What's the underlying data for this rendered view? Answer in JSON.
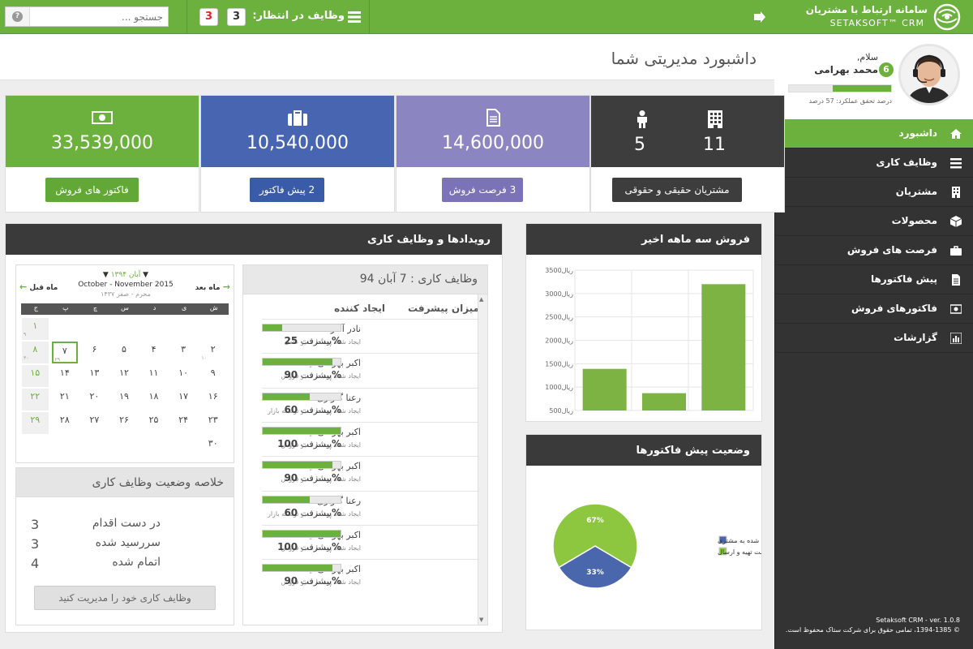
{
  "brand": {
    "title": "سامانه ارتباط با مشتریان",
    "subtitle": "SETAKSOFT™ CRM"
  },
  "topbar": {
    "tasks_label": "وظایف در انتظار:",
    "pending_count": "3",
    "overdue_count": "3",
    "search_placeholder": "جستجو ...",
    "help_glyph": "?"
  },
  "profile": {
    "greeting": "سلام,",
    "name": "محمد بهرامی",
    "badge": "6",
    "performance_pct": 57,
    "performance_label": "درصد تحقق عملکرد: 57 درصد"
  },
  "nav": [
    {
      "label": "داشبورد",
      "icon": "home-icon",
      "active": true
    },
    {
      "label": "وظایف کاری",
      "icon": "list-icon"
    },
    {
      "label": "مشتریان",
      "icon": "building-icon"
    },
    {
      "label": "محصولات",
      "icon": "box-icon"
    },
    {
      "label": "فرصت های فروش",
      "icon": "briefcase-icon"
    },
    {
      "label": "پیش فاکتورها",
      "icon": "document-icon"
    },
    {
      "label": "فاکتورهای فروش",
      "icon": "money-icon"
    },
    {
      "label": "گزارشات",
      "icon": "bar-chart-icon"
    }
  ],
  "footer": {
    "version": "Setaksoft CRM - ver. 1.0.8",
    "copyright": "© 1394-1385، تمامی حقوق برای شرکت ستاک محفوظ است."
  },
  "page_title": "داشبورد مدیریتی شما",
  "stats": {
    "customers": {
      "individual": "5",
      "legal": "11",
      "button": "مشتریان حقیقی و حقوقی",
      "color": "#3d3d3d"
    },
    "opportunities": {
      "value": "14,600,000",
      "button": "3 فرصت فروش",
      "color": "#8b85c1",
      "btn_color": "#7a73b8"
    },
    "quotes": {
      "value": "10,540,000",
      "button": "2 پیش فاکتور",
      "color": "#4765b0",
      "btn_color": "#3a5ba8"
    },
    "invoices": {
      "value": "33,539,000",
      "button": "فاکتور های فروش",
      "color": "#6cb13d",
      "btn_color": "#62a837"
    }
  },
  "events": {
    "title": "رویدادها و وظایف کاری",
    "calendar": {
      "prev": "ماه قبل",
      "next": "ماه بعد",
      "month_fa": "آبان ۱۳۹۴",
      "month_en": "October - November 2015",
      "month_hijri": "محرم - صفر ۱۴۳۷",
      "weekdays": [
        "ش",
        "ی",
        "د",
        "س",
        "چ",
        "پ",
        "ج"
      ],
      "weeks": [
        [
          {
            "d": "",
            "s": ""
          },
          {
            "d": "",
            "s": ""
          },
          {
            "d": "",
            "s": ""
          },
          {
            "d": "",
            "s": ""
          },
          {
            "d": "",
            "s": ""
          },
          {
            "d": "",
            "s": ""
          },
          {
            "d": "۱",
            "s": "۹"
          }
        ],
        [
          {
            "d": "۲",
            "s": "۱۰"
          },
          {
            "d": "۳",
            "s": ""
          },
          {
            "d": "۴",
            "s": ""
          },
          {
            "d": "۵",
            "s": ""
          },
          {
            "d": "۶",
            "s": ""
          },
          {
            "d": "۷",
            "s": "۲۹",
            "today": true
          },
          {
            "d": "۸",
            "s": "۳۰"
          }
        ],
        [
          {
            "d": "۹",
            "s": ""
          },
          {
            "d": "۱۰",
            "s": ""
          },
          {
            "d": "۱۱",
            "s": ""
          },
          {
            "d": "۱۲",
            "s": ""
          },
          {
            "d": "۱۳",
            "s": ""
          },
          {
            "d": "۱۴",
            "s": ""
          },
          {
            "d": "۱۵",
            "s": ""
          }
        ],
        [
          {
            "d": "۱۶",
            "s": ""
          },
          {
            "d": "۱۷",
            "s": ""
          },
          {
            "d": "۱۸",
            "s": ""
          },
          {
            "d": "۱۹",
            "s": ""
          },
          {
            "d": "۲۰",
            "s": ""
          },
          {
            "d": "۲۱",
            "s": ""
          },
          {
            "d": "۲۲",
            "s": ""
          }
        ],
        [
          {
            "d": "۲۳",
            "s": ""
          },
          {
            "d": "۲۴",
            "s": ""
          },
          {
            "d": "۲۵",
            "s": ""
          },
          {
            "d": "۲۶",
            "s": ""
          },
          {
            "d": "۲۷",
            "s": ""
          },
          {
            "d": "۲۸",
            "s": ""
          },
          {
            "d": "۲۹",
            "s": ""
          }
        ],
        [
          {
            "d": "۳۰",
            "s": ""
          },
          {
            "d": "",
            "s": ""
          },
          {
            "d": "",
            "s": ""
          },
          {
            "d": "",
            "s": ""
          },
          {
            "d": "",
            "s": ""
          },
          {
            "d": "",
            "s": ""
          },
          {
            "d": "",
            "s": ""
          }
        ]
      ]
    },
    "summary": {
      "title": "خلاصه وضعیت وظایف کاری",
      "rows": [
        {
          "label": "در دست اقدام",
          "value": "3"
        },
        {
          "label": "سررسید شده",
          "value": "3"
        },
        {
          "label": "اتمام شده",
          "value": "4"
        }
      ],
      "button": "وظایف کاری خود را مدیریت کنید"
    },
    "tasks": {
      "title": "وظایف کاری : 7 آبان 94",
      "col_progress": "میزان پیشرفت",
      "col_creator": "ایجاد کننده",
      "progress_word": "پیشرفت",
      "rows": [
        {
          "name": "نادر آقازاده",
          "sub": "ایجاد شده توسط مدیر عامل",
          "pct": 25
        },
        {
          "name": "اکبر بهرامی نیا",
          "sub": "ایجاد شده توسط مدیر فروش",
          "pct": 90
        },
        {
          "name": "رعنا گلزاری",
          "sub": "ایجاد شده توسط مدیر توسعه بازار",
          "pct": 60
        },
        {
          "name": "اکبر بهرامی نیا",
          "sub": "ایجاد شده توسط مدیر فروش",
          "pct": 100
        },
        {
          "name": "اکبر بهرامی نیا",
          "sub": "ایجاد شده توسط مدیر فروش",
          "pct": 90
        },
        {
          "name": "رعنا گلزاری",
          "sub": "ایجاد شده توسط مدیر توسعه بازار",
          "pct": 60
        },
        {
          "name": "اکبر بهرامی نیا",
          "sub": "ایجاد شده توسط مدیر فروش",
          "pct": 100
        },
        {
          "name": "اکبر بهرامی نیا",
          "sub": "ایجاد شده توسط مدیر فروش",
          "pct": 90
        }
      ]
    }
  },
  "sales_chart_title": "فروش سه ماهه اخیر",
  "quote_chart_title": "وضعیت پیش فاکتورها",
  "chart_data": [
    {
      "type": "bar",
      "title": "فروش سه ماهه اخیر",
      "ytick_labels": [
        "3500ریال",
        "3000ریال",
        "2500ریال",
        "2000ریال",
        "1500ریال",
        "1000ریال",
        "500ریال"
      ],
      "yticks": [
        3500,
        3000,
        2500,
        2000,
        1500,
        1000,
        500
      ],
      "ylim": [
        500,
        3500
      ],
      "categories": [
        "",
        "",
        ""
      ],
      "values": [
        1390,
        870,
        3200
      ],
      "color": "#7cb342",
      "grid": true
    },
    {
      "type": "pie",
      "title": "وضعیت پیش فاکتورها",
      "labels": [
        "ارسال شده به مشتری",
        "در دست تهیه و ارسال"
      ],
      "values": [
        33,
        67
      ],
      "value_labels": [
        "33%",
        "67%"
      ],
      "colors": [
        "#4a66ac",
        "#8dc63f"
      ],
      "legend": "right"
    }
  ]
}
